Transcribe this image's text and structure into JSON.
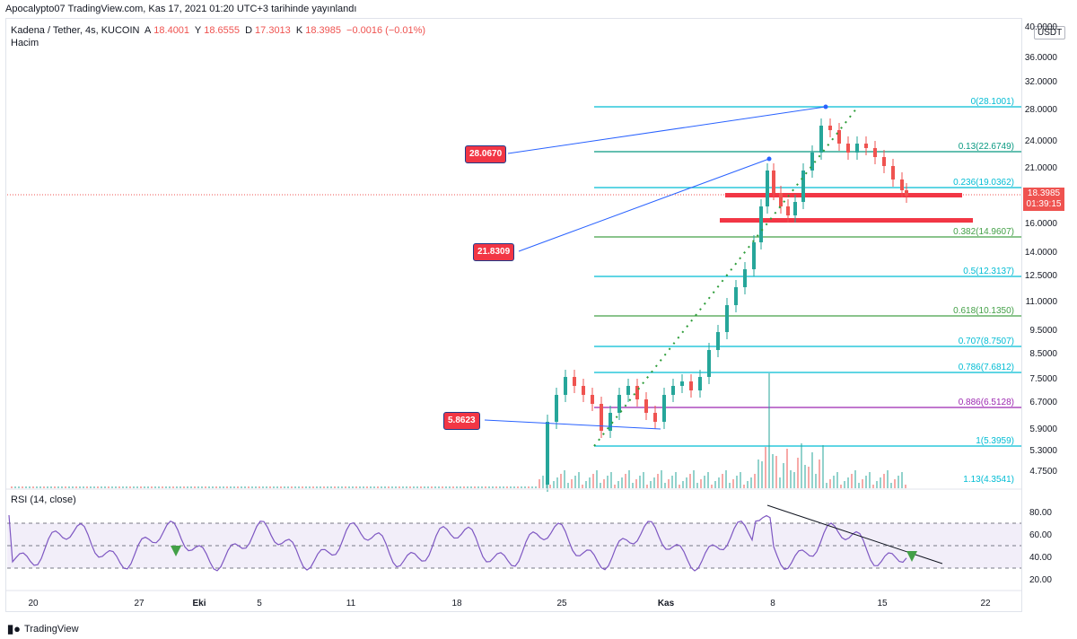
{
  "header": {
    "text": "Apocalypto07 TradingView.com, Kas 17, 2021 01:20 UTC+3 tarihinde yayınlandı"
  },
  "legend": {
    "symbol": "Kadena / Tether, 4s, KUCOIN",
    "o_label": "A",
    "o": "18.4001",
    "h_label": "Y",
    "h": "18.6555",
    "l_label": "D",
    "l": "17.3013",
    "c_label": "K",
    "c": "18.3985",
    "change": "−0.0016 (−0.01%)",
    "volume": "Hacim"
  },
  "currency": "USDT",
  "price_axis": [
    "40.0000",
    "36.0000",
    "32.0000",
    "28.0000",
    "24.0000",
    "21.0000",
    "16.0000",
    "14.0000",
    "12.5000",
    "11.0000",
    "9.5000",
    "8.5000",
    "7.5000",
    "6.7000",
    "5.9000",
    "5.3000",
    "4.7500"
  ],
  "last_price": {
    "price": "18.3985",
    "countdown": "01:39:15"
  },
  "fib_levels": [
    {
      "label": "0(28.1001)",
      "color": "#00bcd4"
    },
    {
      "label": "0.13(22.6749)",
      "color": "#089981"
    },
    {
      "label": "0.236(19.0362)",
      "color": "#00bcd4"
    },
    {
      "label": "0.382(14.9607)",
      "color": "#43a047"
    },
    {
      "label": "0.5(12.3137)",
      "color": "#00bcd4"
    },
    {
      "label": "0.618(10.1350)",
      "color": "#43a047"
    },
    {
      "label": "0.707(8.7507)",
      "color": "#00bcd4"
    },
    {
      "label": "0.786(7.6812)",
      "color": "#00bcd4"
    },
    {
      "label": "0.886(6.5128)",
      "color": "#9c27b0"
    },
    {
      "label": "1(5.3959)",
      "color": "#00bcd4"
    },
    {
      "label": "1.13(4.3541)",
      "color": "#00bcd4"
    }
  ],
  "callouts": [
    "28.0670",
    "21.8309",
    "5.8623"
  ],
  "rsi": {
    "label": "RSI (14, close)",
    "axis": [
      "80.00",
      "60.00",
      "40.00",
      "20.00"
    ]
  },
  "x_axis": [
    "20",
    "27",
    "Eki",
    "5",
    "11",
    "18",
    "25",
    "Kas",
    "8",
    "15",
    "22"
  ],
  "footer": {
    "brand": "TradingView"
  },
  "colors": {
    "up": "#26a69a",
    "down": "#ef5350",
    "rsi": "#7e57c2",
    "support": "#f23645"
  }
}
